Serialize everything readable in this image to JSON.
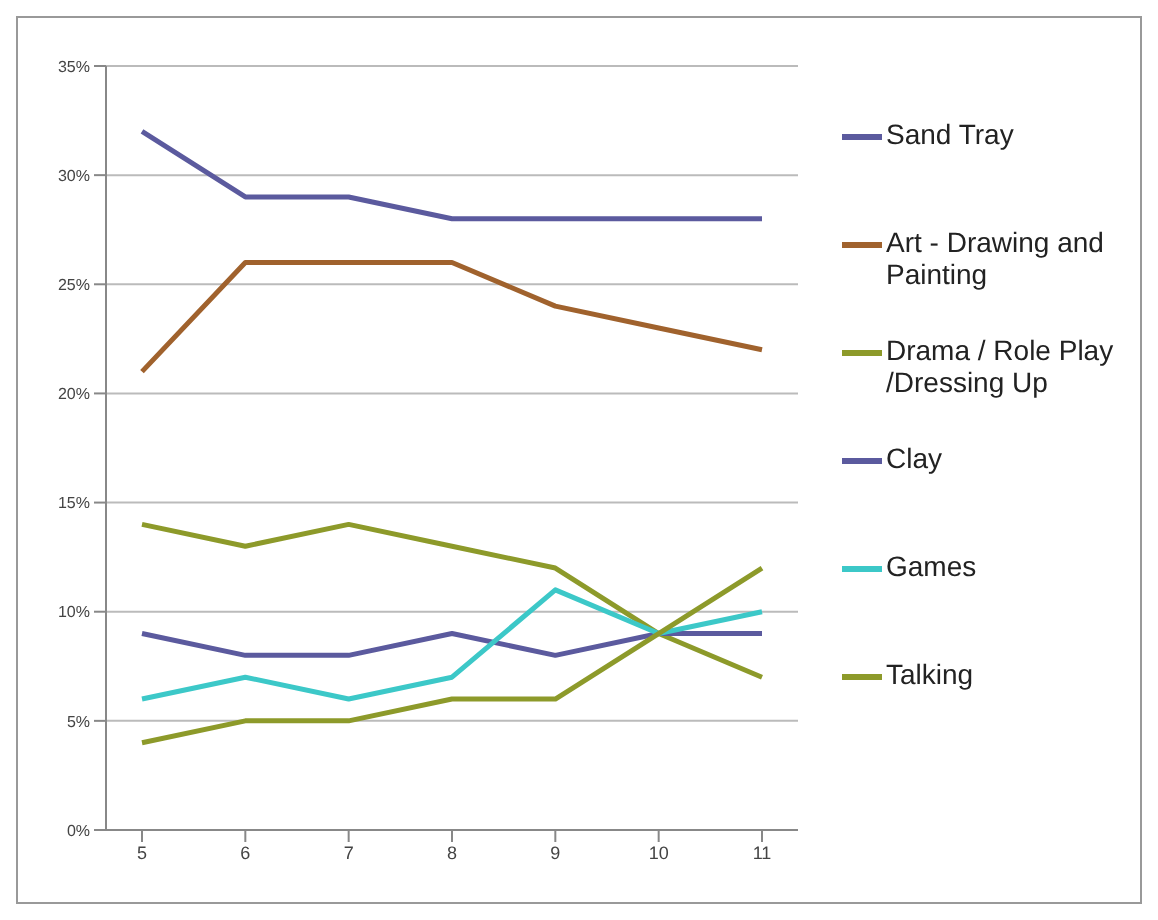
{
  "chart_data": {
    "type": "line",
    "categories": [
      "5",
      "6",
      "7",
      "8",
      "9",
      "10",
      "11"
    ],
    "series": [
      {
        "name": "Sand Tray",
        "color": "#5b5a9e",
        "values": [
          32,
          29,
          29,
          28,
          28,
          28,
          28
        ]
      },
      {
        "name": "Art - Drawing and Painting",
        "color": "#a0622d",
        "values": [
          21,
          26,
          26,
          26,
          24,
          23,
          22
        ]
      },
      {
        "name": "Drama / Role Play /Dressing Up",
        "color": "#8d9a2a",
        "values": [
          14,
          13,
          14,
          13,
          12,
          9,
          7
        ]
      },
      {
        "name": "Clay",
        "color": "#5b5a9e",
        "values": [
          9,
          8,
          8,
          9,
          8,
          9,
          9
        ]
      },
      {
        "name": "Games",
        "color": "#3cc8c8",
        "values": [
          6,
          7,
          6,
          7,
          11,
          9,
          10
        ]
      },
      {
        "name": "Talking",
        "color": "#8d9a2a",
        "values": [
          4,
          5,
          5,
          6,
          6,
          9,
          12
        ]
      }
    ],
    "ylim": [
      0,
      35
    ],
    "yticks": [
      {
        "value": 0,
        "label": "0%"
      },
      {
        "value": 5,
        "label": "5%"
      },
      {
        "value": 10,
        "label": "10%"
      },
      {
        "value": 15,
        "label": "15%"
      },
      {
        "value": 20,
        "label": "20%"
      },
      {
        "value": 25,
        "label": "25%"
      },
      {
        "value": 30,
        "label": "30%"
      },
      {
        "value": 35,
        "label": "35%"
      }
    ],
    "grid": "y",
    "legend": "right",
    "marker": "none",
    "line_style": "solid"
  }
}
